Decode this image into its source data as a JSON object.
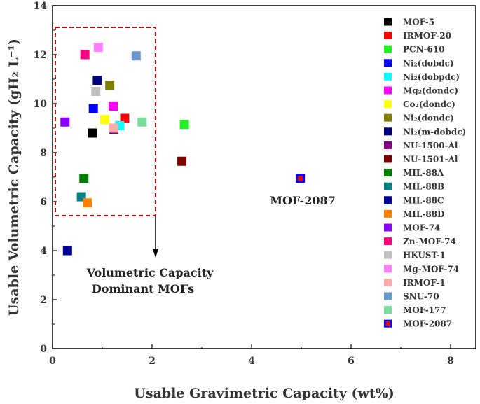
{
  "chart_data": {
    "type": "scatter",
    "xlabel": "Usable Gravimetric Capacity (wt%)",
    "ylabel": "Usable Volumetric Capacity (gH₂ L⁻¹)",
    "xlim": [
      0,
      8.5
    ],
    "ylim": [
      0,
      14
    ],
    "xticks": [
      0,
      2,
      4,
      6,
      8
    ],
    "yticks": [
      0,
      2,
      4,
      6,
      8,
      10,
      12,
      14
    ],
    "legend_position": "right",
    "series": [
      {
        "name": "MOF-5",
        "color": "#000000",
        "x": 0.8,
        "y": 8.8
      },
      {
        "name": "IRMOF-20",
        "color": "#ff0000",
        "x": 1.45,
        "y": 9.4
      },
      {
        "name": "PCN-610",
        "color": "#22ee22",
        "x": 2.65,
        "y": 9.15
      },
      {
        "name": "Ni₂(dobdc)",
        "color": "#0000ff",
        "x": 0.82,
        "y": 9.8
      },
      {
        "name": "Ni₂(dobpdc)",
        "color": "#00ffff",
        "x": 1.35,
        "y": 9.1
      },
      {
        "name": "Mg₂(dondc)",
        "color": "#ff00ff",
        "x": 1.22,
        "y": 9.9
      },
      {
        "name": "Co₂(dondc)",
        "color": "#ffff00",
        "x": 1.05,
        "y": 9.35
      },
      {
        "name": "Ni₂(dondc)",
        "color": "#808000",
        "x": 1.15,
        "y": 10.75
      },
      {
        "name": "Ni₂(m-dobdc)",
        "color": "#000080",
        "x": 0.9,
        "y": 10.95
      },
      {
        "name": "NU-1500-Al",
        "color": "#800080",
        "x": 1.23,
        "y": 8.95
      },
      {
        "name": "NU-1501-Al",
        "color": "#800000",
        "x": 2.6,
        "y": 7.65
      },
      {
        "name": "MIL-88A",
        "color": "#008000",
        "x": 0.63,
        "y": 6.95
      },
      {
        "name": "MIL-88B",
        "color": "#008080",
        "x": 0.58,
        "y": 6.2
      },
      {
        "name": "MIL-88C",
        "color": "#000099",
        "x": 0.3,
        "y": 4.0
      },
      {
        "name": "MIL-88D",
        "color": "#ff8000",
        "x": 0.7,
        "y": 5.95
      },
      {
        "name": "MOF-74",
        "color": "#8800ff",
        "x": 0.25,
        "y": 9.25
      },
      {
        "name": "Zn-MOF-74",
        "color": "#ff0080",
        "x": 0.65,
        "y": 12.0
      },
      {
        "name": "HKUST-1",
        "color": "#c0c0c0",
        "x": 0.87,
        "y": 10.5
      },
      {
        "name": "Mg-MOF-74",
        "color": "#ff80ff",
        "x": 0.92,
        "y": 12.3
      },
      {
        "name": "IRMOF-1",
        "color": "#ffaaaa",
        "x": 1.23,
        "y": 9.0
      },
      {
        "name": "SNU-70",
        "color": "#6699cc",
        "x": 1.68,
        "y": 11.95
      },
      {
        "name": "MOF-177",
        "color": "#77dd99",
        "x": 1.8,
        "y": 9.25
      },
      {
        "name": "MOF-2087",
        "color": "#0000ff",
        "inner_color": "#ff0000",
        "x": 4.98,
        "y": 6.95
      }
    ],
    "annotations": {
      "mof2087_label": "MOF-2087",
      "dominant_line1": "Volumetric Capacity",
      "dominant_line2": "Dominant MOFs"
    }
  }
}
